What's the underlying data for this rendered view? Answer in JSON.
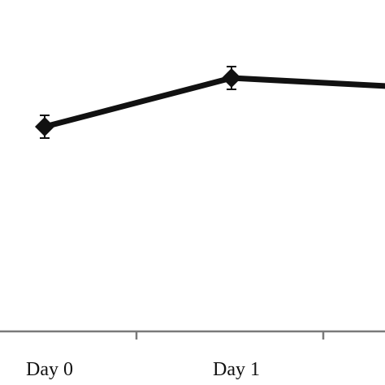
{
  "chart_data": {
    "type": "line",
    "categories": [
      "Day 0",
      "Day 1",
      ""
    ],
    "series": [
      {
        "values": [
          0.63,
          0.78,
          0.75
        ],
        "error": [
          0.035,
          0.035,
          0
        ]
      }
    ],
    "title": "",
    "xlabel": "",
    "ylabel": "",
    "grid": false,
    "legend": "none",
    "colors": {
      "line": "#111111",
      "axis": "#7a7a7a"
    }
  }
}
